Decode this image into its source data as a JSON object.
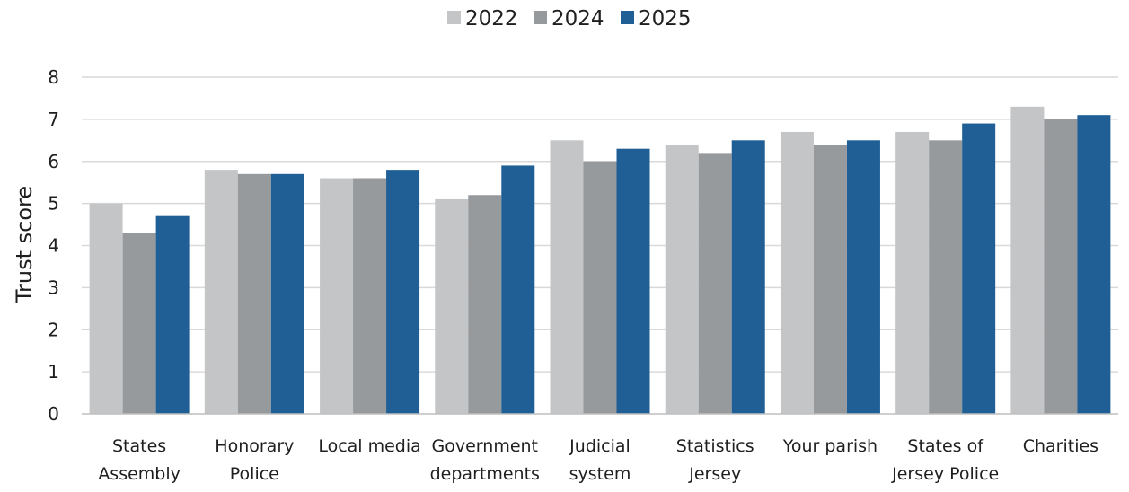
{
  "chart_data": {
    "type": "bar",
    "title": "",
    "xlabel": "",
    "ylabel": "Trust score",
    "ylim": [
      0,
      8
    ],
    "yticks": [
      "0",
      "1",
      "2",
      "3",
      "4",
      "5",
      "6",
      "7",
      "8"
    ],
    "grid": "horizontal",
    "legend_position": "top-center",
    "categories": [
      [
        "States",
        "Assembly"
      ],
      [
        "Honorary",
        "Police"
      ],
      [
        "Local media"
      ],
      [
        "Government",
        "departments"
      ],
      [
        "Judicial",
        "system"
      ],
      [
        "Statistics",
        "Jersey"
      ],
      [
        "Your parish"
      ],
      [
        "States of",
        "Jersey Police"
      ],
      [
        "Charities"
      ]
    ],
    "series": [
      {
        "name": "2022",
        "color": "#c4c5c7",
        "values": [
          5.0,
          5.8,
          5.6,
          5.1,
          6.5,
          6.4,
          6.7,
          6.7,
          7.3
        ]
      },
      {
        "name": "2024",
        "color": "#979a9d",
        "values": [
          4.3,
          5.7,
          5.6,
          5.2,
          6.0,
          6.2,
          6.4,
          6.5,
          7.0
        ]
      },
      {
        "name": "2025",
        "color": "#1f5f95",
        "values": [
          4.7,
          5.7,
          5.8,
          5.9,
          6.3,
          6.5,
          6.5,
          6.9,
          7.1
        ]
      }
    ]
  }
}
